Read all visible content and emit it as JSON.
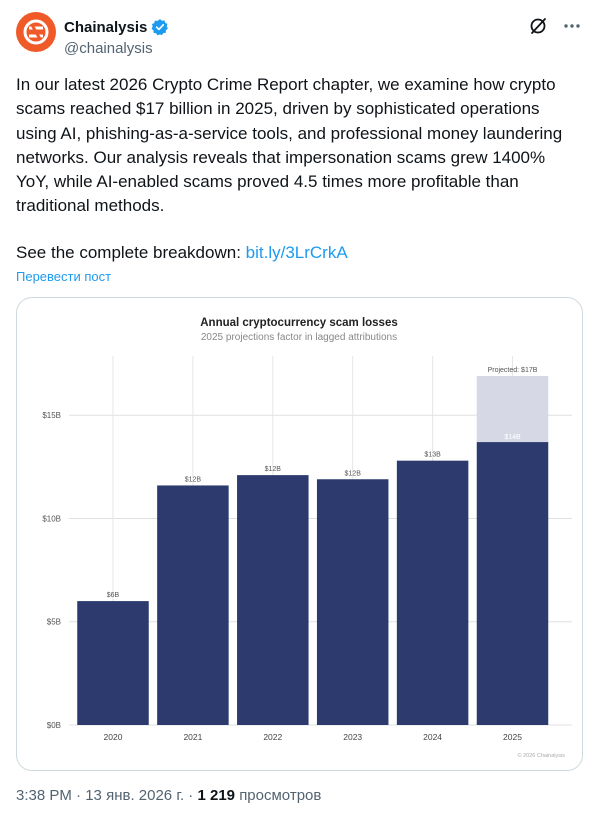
{
  "account": {
    "display_name": "Chainalysis",
    "handle": "@chainalysis",
    "verified": true,
    "avatar_color": "#f05a28",
    "icons": [
      "grok-icon",
      "more-icon"
    ]
  },
  "tweet": {
    "text": "In our latest 2026 Crypto Crime Report chapter, we examine how crypto scams reached $17 billion in 2025, driven by sophisticated operations using AI, phishing-as-a-service tools, and professional money laundering networks. Our analysis reveals that impersonation scams grew 1400% YoY, while AI-enabled scams proved 4.5 times more profitable than traditional methods.",
    "breakdown_prefix": "See the complete breakdown: ",
    "link_text": "bit.ly/3LrCrkA",
    "translate_label": "Перевести пост"
  },
  "footer": {
    "time": "3:38 PM",
    "date": "13 янв. 2026 г.",
    "views_count": "1 219",
    "views_label": "просмотров"
  },
  "chart_data": {
    "type": "bar",
    "title": "Annual cryptocurrency scam losses",
    "subtitle": "2025 projections factor in lagged attributions",
    "categories": [
      "2020",
      "2021",
      "2022",
      "2023",
      "2024",
      "2025"
    ],
    "values": [
      6.0,
      11.6,
      12.1,
      11.9,
      12.8,
      13.7
    ],
    "value_labels": [
      "$6B",
      "$12B",
      "$12B",
      "$12B",
      "$13B",
      "$14B"
    ],
    "projected": {
      "category": "2025",
      "value": 16.9,
      "label": "Projected: $17B",
      "color": "#d6d8e6"
    },
    "yticks": [
      0,
      5,
      10,
      15
    ],
    "ytick_labels": [
      "$0B",
      "$5B",
      "$10B",
      "$15B"
    ],
    "ylim": [
      0,
      16.9
    ],
    "bar_color": "#2d3a6e",
    "grid": true,
    "watermark": "© 2026 Chainalysis"
  }
}
